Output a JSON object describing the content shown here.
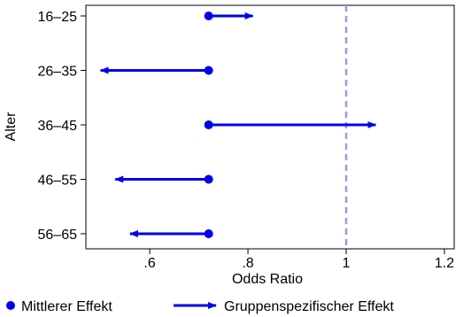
{
  "chart_data": {
    "type": "dot-arrow",
    "xlabel": "Odds Ratio",
    "ylabel": "Alter",
    "xlim": [
      0.47,
      1.22
    ],
    "xticks": [
      {
        "value": 0.6,
        "label": ".6"
      },
      {
        "value": 0.8,
        "label": ".8"
      },
      {
        "value": 1.0,
        "label": "1"
      },
      {
        "value": 1.2,
        "label": "1.2"
      }
    ],
    "reference_line": {
      "value": 1.0,
      "style": "dashed",
      "color": "#9999ee"
    },
    "categories": [
      "16–25",
      "26–35",
      "36–45",
      "46–55",
      "56–65"
    ],
    "mean_effect": [
      0.72,
      0.72,
      0.72,
      0.72,
      0.72
    ],
    "group_effect": [
      0.81,
      0.5,
      1.06,
      0.53,
      0.56
    ],
    "color": "#0000ee",
    "legend": {
      "placement": "bottom",
      "mean_label": "Mittlerer Effekt",
      "group_label": "Gruppenspezifischer Effekt"
    }
  }
}
